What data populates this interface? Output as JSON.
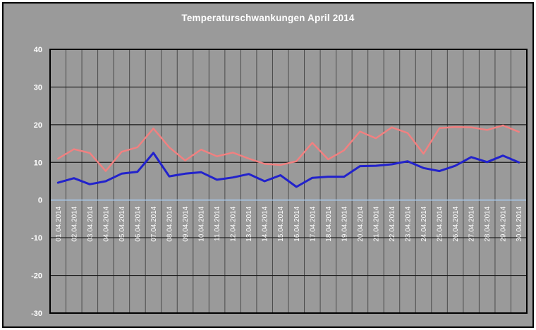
{
  "chart_data": {
    "type": "line",
    "title": "Temperaturschwankungen April 2014",
    "categories": [
      "01.04.2014",
      "02.04.2014",
      "03.04.2014",
      "04.04.2014",
      "05.04.2014",
      "06.04.2014",
      "07.04.2014",
      "08.04.2014",
      "09.04.2014",
      "10.04.2014",
      "11.04.2014",
      "12.04.2014",
      "13.04.2014",
      "14.04.2014",
      "15.04.2014",
      "16.04.2014",
      "17.04.2014",
      "18.04.2014",
      "19.04.2014",
      "20.04.2014",
      "21.04.2014",
      "22.04.2014",
      "23.04.2014",
      "24.04.2014",
      "25.04.2014",
      "26.04.2014",
      "27.04.2014",
      "28.04.2014",
      "29.04.2014",
      "30.04.2014"
    ],
    "series": [
      {
        "id": "red-line",
        "color": "#f28080",
        "values": [
          11,
          13.5,
          12.5,
          7.7,
          12.8,
          14,
          19,
          14,
          10.5,
          13.4,
          11.6,
          12.6,
          11,
          9.6,
          9.3,
          10.3,
          15.2,
          10.8,
          13.2,
          18.2,
          16.4,
          19.3,
          17.8,
          12.3,
          19.1,
          19.4,
          19.3,
          18.6,
          19.8,
          18.1
        ]
      },
      {
        "id": "blue-line",
        "color": "#2222cc",
        "values": [
          4.6,
          5.8,
          4.2,
          5,
          7,
          7.5,
          12.5,
          6.3,
          7,
          7.4,
          5.4,
          6,
          6.9,
          5,
          6.6,
          3.5,
          5.9,
          6.2,
          6.2,
          9,
          9.1,
          9.5,
          10.3,
          8.5,
          7.7,
          9.1,
          11.4,
          10.1,
          11.8,
          10
        ]
      }
    ],
    "xlabel": "",
    "ylabel": "",
    "ylim": [
      -30,
      40
    ],
    "yticks": [
      40,
      30,
      20,
      10,
      0,
      -10,
      -20,
      -30
    ],
    "grid": "vertical line per day, horizontal line per 10 units, highlighted zero line",
    "x_label_rotation": "vertical, reading bottom to top",
    "legend": "none"
  },
  "colors": {
    "page_margin": "#ffffff",
    "background": "#9a9a9a",
    "frame": "#000000",
    "grid_vertical": "#4a4a4a",
    "grid_horizontal": "#1a1a1a",
    "zero_line": "#a7c9ec",
    "title_text": "#ffffff",
    "axis_text": "#ffffff"
  }
}
